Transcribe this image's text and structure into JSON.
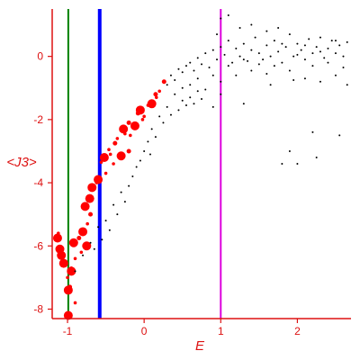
{
  "chart_data": {
    "type": "scatter",
    "title": "",
    "xlabel": "E",
    "ylabel": "<J3>",
    "xlim": [
      -1.2,
      2.7
    ],
    "ylim": [
      -8.3,
      1.5
    ],
    "x_ticks": [
      -1,
      0,
      1,
      2
    ],
    "y_ticks": [
      0,
      -2,
      -4,
      -6,
      -8
    ],
    "grid": false,
    "axis_color": "#dd1111",
    "vertical_lines": [
      {
        "x": -0.99,
        "color": "#008000",
        "weight": "thin"
      },
      {
        "x": -0.58,
        "color": "#0000ff",
        "weight": "thick"
      },
      {
        "x": 1.0,
        "color": "#dd00dd",
        "weight": "thin"
      }
    ],
    "series": [
      {
        "color": "#ff0000",
        "marker": "large-dots",
        "points": [
          [
            -0.99,
            -8.2
          ],
          [
            -0.99,
            -7.4
          ],
          [
            -1.05,
            -6.55
          ],
          [
            -0.95,
            -6.8
          ],
          [
            -1.1,
            -6.1
          ],
          [
            -0.92,
            -5.9
          ],
          [
            -1.13,
            -5.75
          ],
          [
            -0.77,
            -4.75
          ],
          [
            -0.71,
            -4.5
          ],
          [
            -0.68,
            -4.15
          ],
          [
            -0.62,
            -4.0
          ],
          [
            -0.56,
            -3.35
          ],
          [
            -0.52,
            -3.2
          ],
          [
            -0.46,
            -2.95
          ],
          [
            -0.44,
            -3.1
          ],
          [
            -0.38,
            -2.75
          ],
          [
            -0.27,
            -2.3
          ],
          [
            -0.25,
            -2.45
          ],
          [
            -0.2,
            -2.1
          ],
          [
            -0.18,
            -2.5
          ],
          [
            -0.12,
            -2.2
          ],
          [
            -0.08,
            -1.8
          ],
          [
            -0.02,
            -2.0
          ],
          [
            0.05,
            -1.55
          ],
          [
            0.1,
            -1.5
          ],
          [
            0.16,
            -1.3
          ],
          [
            0.2,
            -1.1
          ],
          [
            0.26,
            -0.8
          ],
          [
            -0.3,
            -3.15
          ],
          [
            -0.4,
            -3.4
          ],
          [
            -0.7,
            -5.0
          ],
          [
            -0.74,
            -5.3
          ],
          [
            -0.8,
            -5.55
          ],
          [
            -0.85,
            -5.75
          ],
          [
            -0.9,
            -6.4
          ],
          [
            -0.82,
            -6.2
          ],
          [
            -0.75,
            -6.0
          ],
          [
            -0.95,
            -6.7
          ],
          [
            -1.0,
            -7.0
          ],
          [
            -0.97,
            -7.3
          ],
          [
            -1.08,
            -6.3
          ],
          [
            -1.12,
            -5.6
          ],
          [
            -0.2,
            -3.0
          ],
          [
            0.0,
            -1.9
          ],
          [
            -0.05,
            -1.7
          ],
          [
            0.15,
            -1.2
          ],
          [
            -0.35,
            -2.6
          ],
          [
            -0.5,
            -3.7
          ],
          [
            -0.6,
            -3.9
          ],
          [
            -0.9,
            -7.8
          ]
        ]
      },
      {
        "color": "#000000",
        "marker": "small-dots",
        "points": [
          [
            0.3,
            -0.9
          ],
          [
            0.35,
            -0.6
          ],
          [
            0.4,
            -0.75
          ],
          [
            0.45,
            -0.4
          ],
          [
            0.5,
            -0.5
          ],
          [
            0.55,
            -0.3
          ],
          [
            0.6,
            -0.2
          ],
          [
            0.65,
            -0.45
          ],
          [
            0.7,
            -0.05
          ],
          [
            0.75,
            -0.25
          ],
          [
            0.8,
            0.1
          ],
          [
            0.85,
            -0.35
          ],
          [
            0.9,
            0.2
          ],
          [
            0.95,
            -0.1
          ],
          [
            1.0,
            0.3
          ],
          [
            1.05,
            0.05
          ],
          [
            1.1,
            0.5
          ],
          [
            1.15,
            -0.2
          ],
          [
            1.2,
            0.25
          ],
          [
            1.25,
            0.0
          ],
          [
            1.3,
            0.4
          ],
          [
            1.35,
            -0.15
          ],
          [
            1.4,
            0.2
          ],
          [
            1.45,
            0.6
          ],
          [
            1.5,
            0.1
          ],
          [
            1.55,
            -0.1
          ],
          [
            1.6,
            0.35
          ],
          [
            1.65,
            0.0
          ],
          [
            1.7,
            0.5
          ],
          [
            1.75,
            0.15
          ],
          [
            1.8,
            -0.2
          ],
          [
            1.85,
            0.3
          ],
          [
            1.9,
            0.7
          ],
          [
            1.95,
            0.0
          ],
          [
            2.0,
            0.4
          ],
          [
            2.05,
            0.2
          ],
          [
            2.1,
            -0.1
          ],
          [
            2.15,
            0.55
          ],
          [
            2.2,
            0.1
          ],
          [
            2.25,
            0.3
          ],
          [
            2.3,
            0.6
          ],
          [
            2.35,
            -0.05
          ],
          [
            2.4,
            0.25
          ],
          [
            2.45,
            0.5
          ],
          [
            2.5,
            0.1
          ],
          [
            2.55,
            0.35
          ],
          [
            2.6,
            0.0
          ],
          [
            2.65,
            0.45
          ],
          [
            0.4,
            -1.2
          ],
          [
            0.5,
            -1.0
          ],
          [
            0.6,
            -0.9
          ],
          [
            0.7,
            -0.7
          ],
          [
            0.8,
            -1.05
          ],
          [
            0.9,
            -0.6
          ],
          [
            1.0,
            -0.8
          ],
          [
            1.1,
            -0.3
          ],
          [
            1.2,
            -0.6
          ],
          [
            1.3,
            -0.1
          ],
          [
            1.4,
            -0.45
          ],
          [
            1.5,
            -0.25
          ],
          [
            1.6,
            -0.55
          ],
          [
            1.7,
            -0.3
          ],
          [
            1.8,
            0.4
          ],
          [
            1.9,
            -0.45
          ],
          [
            2.0,
            0.05
          ],
          [
            2.1,
            0.35
          ],
          [
            2.2,
            -0.3
          ],
          [
            2.3,
            0.15
          ],
          [
            2.4,
            -0.2
          ],
          [
            2.5,
            0.5
          ],
          [
            2.6,
            -0.35
          ],
          [
            0.45,
            -1.7
          ],
          [
            0.5,
            -1.4
          ],
          [
            0.55,
            -1.55
          ],
          [
            0.6,
            -1.3
          ],
          [
            0.65,
            -1.5
          ],
          [
            0.7,
            -1.1
          ],
          [
            0.75,
            -1.35
          ],
          [
            0.9,
            -1.6
          ],
          [
            1.0,
            -1.2
          ],
          [
            0.3,
            -1.6
          ],
          [
            0.35,
            -1.85
          ],
          [
            0.2,
            -1.9
          ],
          [
            0.25,
            -2.1
          ],
          [
            0.1,
            -2.3
          ],
          [
            0.15,
            -2.55
          ],
          [
            0.05,
            -2.7
          ],
          [
            0.0,
            -3.0
          ],
          [
            -0.05,
            -3.3
          ],
          [
            -0.1,
            -3.5
          ],
          [
            0.08,
            -3.1
          ],
          [
            -0.15,
            -3.8
          ],
          [
            -0.2,
            -4.1
          ],
          [
            -0.3,
            -4.3
          ],
          [
            -0.25,
            -4.6
          ],
          [
            -0.4,
            -4.7
          ],
          [
            -0.35,
            -5.0
          ],
          [
            -0.5,
            -5.2
          ],
          [
            -0.45,
            -5.5
          ],
          [
            -0.6,
            -5.4
          ],
          [
            -0.55,
            -5.8
          ],
          [
            -0.7,
            -5.9
          ],
          [
            -0.65,
            -6.1
          ],
          [
            -0.8,
            -6.3
          ],
          [
            -0.9,
            -6.8
          ],
          [
            1.0,
            1.2
          ],
          [
            1.1,
            1.3
          ],
          [
            1.25,
            0.9
          ],
          [
            0.95,
            0.7
          ],
          [
            1.4,
            1.0
          ],
          [
            1.6,
            0.8
          ],
          [
            1.75,
            0.9
          ],
          [
            1.3,
            -1.5
          ],
          [
            1.9,
            -3.0
          ],
          [
            2.0,
            -3.4
          ],
          [
            2.2,
            -2.4
          ],
          [
            2.25,
            -3.2
          ],
          [
            2.55,
            -2.5
          ],
          [
            1.8,
            -3.4
          ],
          [
            1.65,
            -0.9
          ],
          [
            2.1,
            -0.7
          ],
          [
            2.3,
            -0.8
          ],
          [
            2.5,
            -0.6
          ],
          [
            2.65,
            -0.9
          ],
          [
            1.95,
            -0.75
          ]
        ]
      }
    ]
  }
}
